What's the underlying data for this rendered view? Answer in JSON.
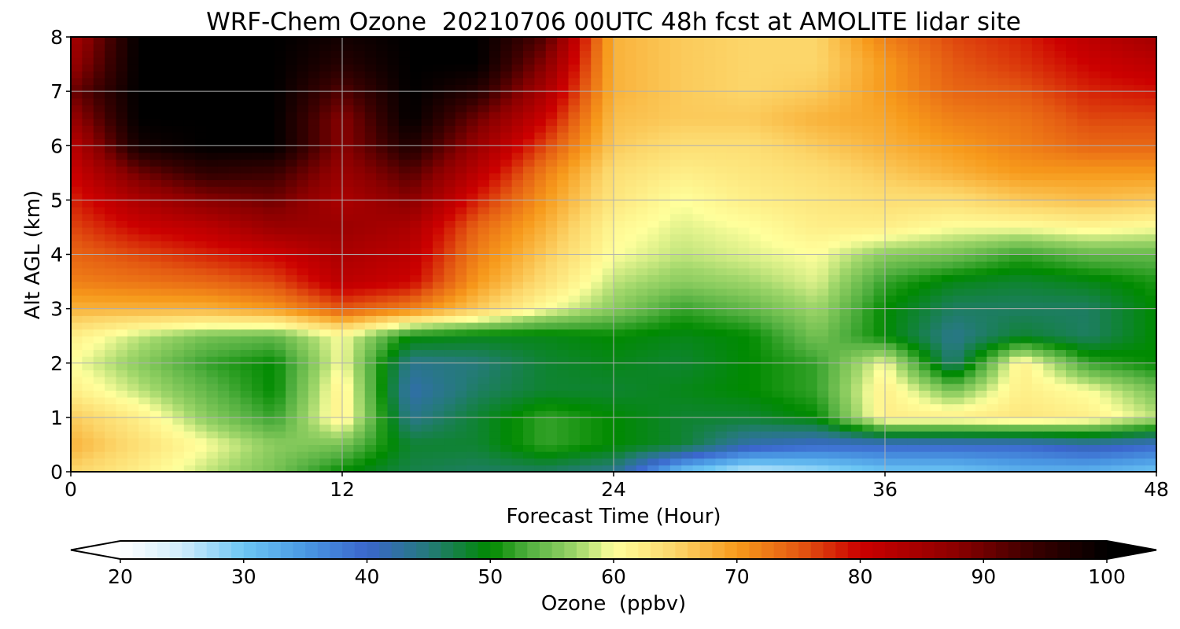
{
  "chart_data": {
    "type": "heatmap",
    "title": "WRF-Chem Ozone  20210706 00UTC 48h fcst at AMOLITE lidar site",
    "xlabel": "Forecast Time (Hour)",
    "ylabel": "Alt AGL (km)",
    "xlim": [
      0,
      48
    ],
    "ylim": [
      0,
      8
    ],
    "x_ticks": [
      "0",
      "12",
      "24",
      "36",
      "48"
    ],
    "y_ticks": [
      "0",
      "1",
      "2",
      "3",
      "4",
      "5",
      "6",
      "7",
      "8"
    ],
    "grid": true,
    "x": [
      0,
      3,
      6,
      9,
      12,
      15,
      18,
      21,
      24,
      27,
      30,
      33,
      36,
      39,
      42,
      45,
      48
    ],
    "y": [
      0,
      0.5,
      1,
      1.5,
      2,
      2.5,
      3,
      3.5,
      4,
      4.5,
      5,
      5.5,
      6,
      6.5,
      7,
      7.5,
      8
    ],
    "z": [
      [
        65,
        62,
        58,
        55,
        50,
        47,
        46,
        46,
        44,
        30,
        25,
        27,
        30,
        30,
        32,
        32,
        30
      ],
      [
        68,
        64,
        60,
        56,
        55,
        48,
        48,
        52,
        50,
        48,
        42,
        40,
        40,
        40,
        40,
        42,
        40
      ],
      [
        66,
        62,
        56,
        52,
        62,
        44,
        48,
        52,
        50,
        48,
        48,
        50,
        62,
        62,
        63,
        62,
        58
      ],
      [
        62,
        58,
        54,
        50,
        62,
        42,
        46,
        48,
        48,
        49,
        50,
        52,
        62,
        55,
        62,
        60,
        55
      ],
      [
        60,
        56,
        52,
        50,
        60,
        44,
        45,
        48,
        49,
        48,
        50,
        52,
        60,
        45,
        62,
        52,
        50
      ],
      [
        62,
        58,
        55,
        54,
        60,
        50,
        49,
        49,
        50,
        49,
        50,
        55,
        50,
        44,
        48,
        46,
        50
      ],
      [
        68,
        68,
        68,
        70,
        75,
        72,
        66,
        60,
        56,
        52,
        54,
        57,
        50,
        46,
        46,
        46,
        50
      ],
      [
        72,
        73,
        74,
        76,
        82,
        80,
        70,
        64,
        58,
        56,
        57,
        59,
        52,
        49,
        48,
        49,
        51
      ],
      [
        74,
        76,
        78,
        80,
        84,
        82,
        72,
        66,
        60,
        58,
        59,
        60,
        56,
        55,
        52,
        54,
        54
      ],
      [
        76,
        80,
        82,
        86,
        86,
        84,
        74,
        68,
        61,
        59,
        60,
        62,
        62,
        60,
        60,
        61,
        60
      ],
      [
        78,
        84,
        88,
        90,
        84,
        88,
        78,
        70,
        63,
        60,
        62,
        63,
        64,
        64,
        66,
        67,
        66
      ],
      [
        80,
        90,
        95,
        94,
        86,
        92,
        82,
        72,
        64,
        62,
        63,
        64,
        66,
        68,
        70,
        70,
        70
      ],
      [
        82,
        98,
        100,
        100,
        88,
        97,
        86,
        76,
        66,
        64,
        64,
        66,
        68,
        70,
        72,
        74,
        74
      ],
      [
        86,
        100,
        100,
        100,
        88,
        100,
        90,
        80,
        67,
        66,
        66,
        68,
        69,
        72,
        73,
        76,
        76
      ],
      [
        90,
        100,
        100,
        100,
        92,
        100,
        96,
        84,
        68,
        66,
        65,
        66,
        70,
        74,
        75,
        78,
        79
      ],
      [
        86,
        100,
        100,
        100,
        96,
        100,
        100,
        88,
        68,
        66,
        65,
        65,
        70,
        75,
        77,
        80,
        82
      ],
      [
        84,
        100,
        100,
        100,
        98,
        100,
        100,
        92,
        68,
        66,
        65,
        65,
        72,
        76,
        78,
        82,
        85
      ]
    ],
    "colorbar": {
      "label": "Ozone  (ppbv)",
      "min": 20,
      "max": 100,
      "ticks": [
        "20",
        "30",
        "40",
        "50",
        "60",
        "70",
        "80",
        "90",
        "100"
      ],
      "extend": "both",
      "color_stops": [
        [
          20,
          "#ffffff"
        ],
        [
          25,
          "#cfecfb"
        ],
        [
          30,
          "#6cc6f4"
        ],
        [
          35,
          "#4a98e3"
        ],
        [
          40,
          "#3a66cc"
        ],
        [
          45,
          "#257a7a"
        ],
        [
          50,
          "#008a00"
        ],
        [
          53,
          "#4fae3e"
        ],
        [
          57,
          "#9fd66a"
        ],
        [
          60,
          "#ffff9c"
        ],
        [
          65,
          "#fcd66a"
        ],
        [
          70,
          "#f79a1b"
        ],
        [
          75,
          "#e45a12"
        ],
        [
          80,
          "#cc0000"
        ],
        [
          88,
          "#8a0000"
        ],
        [
          94,
          "#3a0000"
        ],
        [
          100,
          "#000000"
        ]
      ]
    }
  }
}
